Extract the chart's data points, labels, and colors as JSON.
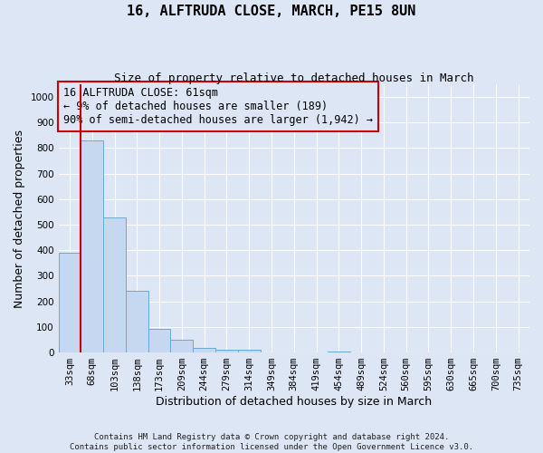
{
  "title": "16, ALFTRUDA CLOSE, MARCH, PE15 8UN",
  "subtitle": "Size of property relative to detached houses in March",
  "xlabel": "Distribution of detached houses by size in March",
  "ylabel": "Number of detached properties",
  "bar_labels": [
    "33sqm",
    "68sqm",
    "103sqm",
    "138sqm",
    "173sqm",
    "209sqm",
    "244sqm",
    "279sqm",
    "314sqm",
    "349sqm",
    "384sqm",
    "419sqm",
    "454sqm",
    "489sqm",
    "524sqm",
    "560sqm",
    "595sqm",
    "630sqm",
    "665sqm",
    "700sqm",
    "735sqm"
  ],
  "bar_values": [
    390,
    830,
    530,
    243,
    93,
    50,
    18,
    12,
    10,
    0,
    0,
    0,
    5,
    0,
    0,
    0,
    0,
    0,
    0,
    0,
    0
  ],
  "bar_color": "#c5d8f0",
  "bar_edge_color": "#6aaad4",
  "ylim": [
    0,
    1050
  ],
  "yticks": [
    0,
    100,
    200,
    300,
    400,
    500,
    600,
    700,
    800,
    900,
    1000
  ],
  "vline_color": "#cc0000",
  "annotation_text": "16 ALFTRUDA CLOSE: 61sqm\n← 9% of detached houses are smaller (189)\n90% of semi-detached houses are larger (1,942) →",
  "annotation_box_edgecolor": "#cc0000",
  "footer": "Contains HM Land Registry data © Crown copyright and database right 2024.\nContains public sector information licensed under the Open Government Licence v3.0.",
  "background_color": "#dce6f5",
  "grid_color": "#ffffff",
  "title_fontsize": 11,
  "subtitle_fontsize": 9,
  "axis_label_fontsize": 9,
  "tick_fontsize": 7.5,
  "annotation_fontsize": 8.5,
  "footer_fontsize": 6.5
}
